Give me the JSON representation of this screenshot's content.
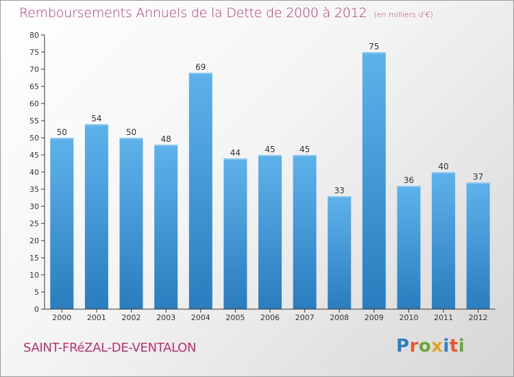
{
  "header": {
    "title": "Remboursements Annuels de la Dette de 2000 à 2012",
    "subtitle": "(en milliers d'€)"
  },
  "footer": {
    "town": "SAINT-FRéZAL-DE-VENTALON",
    "logo_letters": [
      "P",
      "r",
      "o",
      "x",
      "i",
      "t",
      "i"
    ],
    "logo_colors": [
      "#2f7fbf",
      "#e8562a",
      "#6aa836",
      "#e8a21d",
      "#2f7fbf",
      "#e8562a",
      "#6aa836"
    ]
  },
  "chart_data": {
    "type": "bar",
    "title": "Remboursements Annuels de la Dette de 2000 à 2012",
    "categories": [
      "2000",
      "2001",
      "2002",
      "2003",
      "2004",
      "2005",
      "2006",
      "2007",
      "2008",
      "2009",
      "2010",
      "2011",
      "2012"
    ],
    "values": [
      50,
      54,
      50,
      48,
      69,
      44,
      45,
      45,
      33,
      75,
      36,
      40,
      37
    ],
    "data_labels": [
      "50",
      "54",
      "50",
      "48",
      "69",
      "44",
      "45",
      "45",
      "33",
      "75",
      "36",
      "40",
      "37"
    ],
    "y_ticks": [
      "0",
      "5",
      "10",
      "15",
      "20",
      "25",
      "30",
      "35",
      "40",
      "45",
      "50",
      "55",
      "60",
      "65",
      "70",
      "75",
      "80"
    ],
    "ylim": [
      0,
      80
    ],
    "xlabel": "",
    "ylabel": "",
    "grid": false,
    "legend": "none",
    "bar_color_top": "#5eb2eb",
    "bar_color_bottom": "#2a7dbe",
    "axis_color": "#333333",
    "title_color": "#c0306a"
  }
}
